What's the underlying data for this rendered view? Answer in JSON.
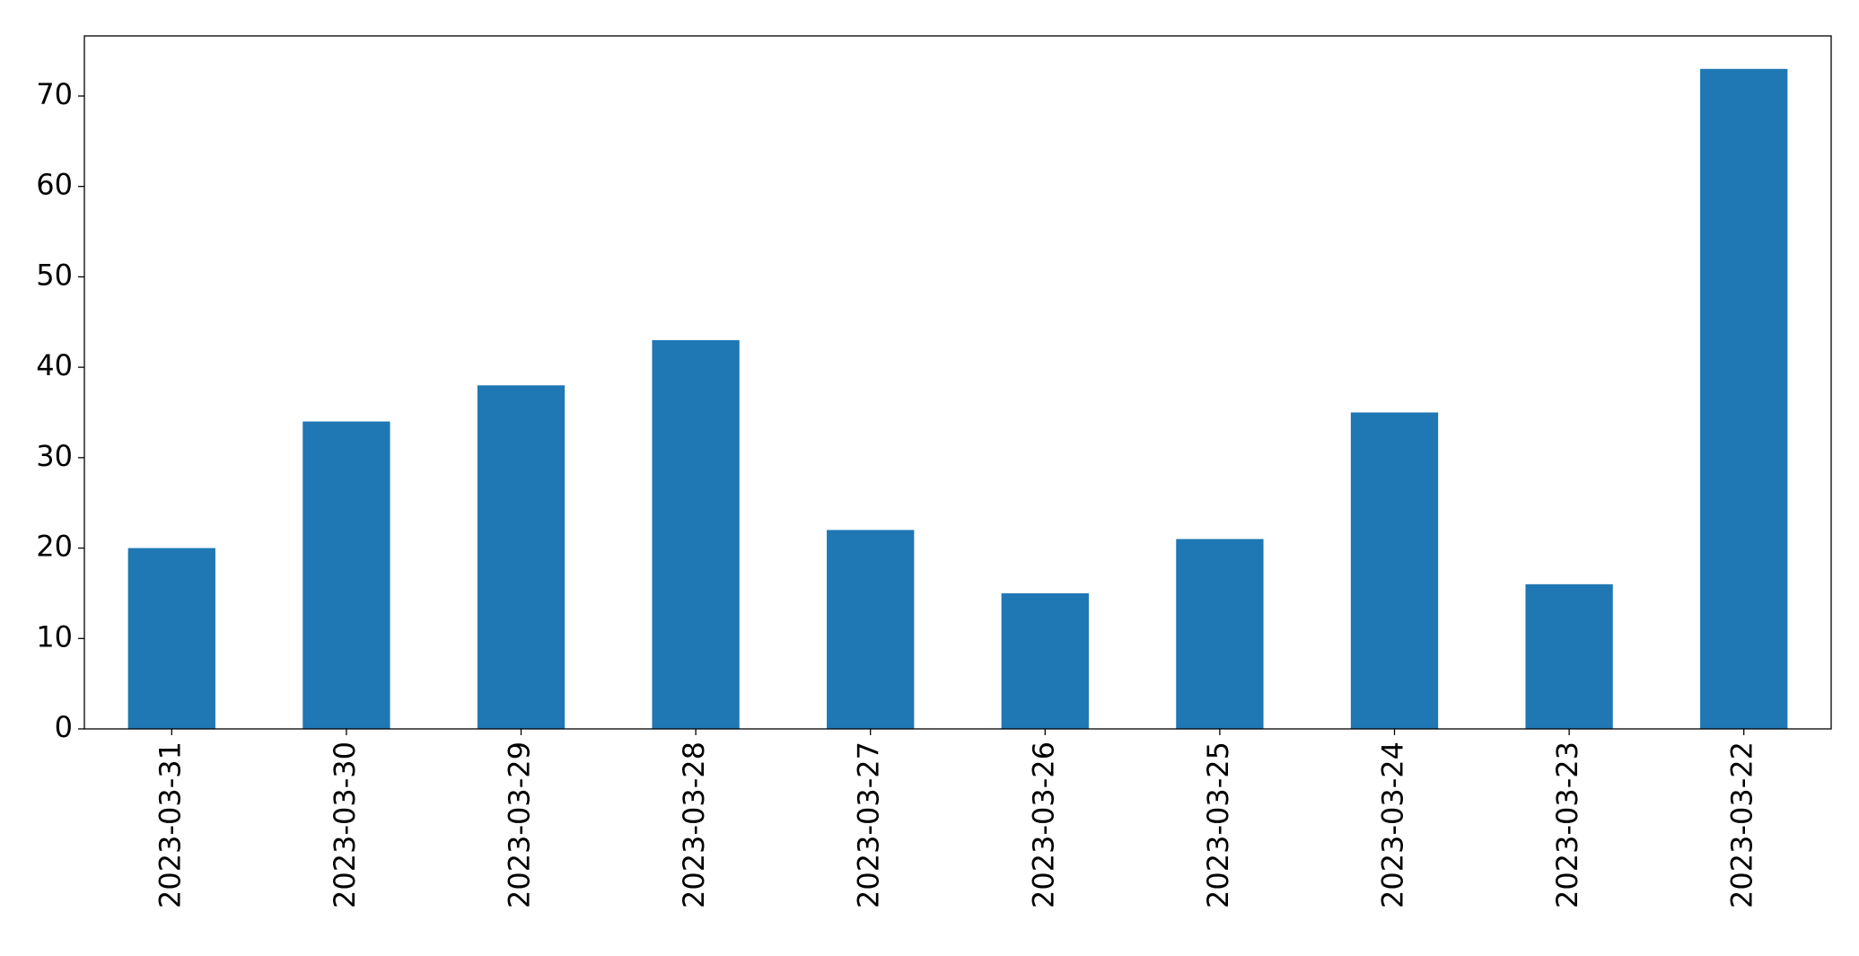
{
  "chart_data": {
    "type": "bar",
    "categories": [
      "2023-03-31",
      "2023-03-30",
      "2023-03-29",
      "2023-03-28",
      "2023-03-27",
      "2023-03-26",
      "2023-03-25",
      "2023-03-24",
      "2023-03-23",
      "2023-03-22"
    ],
    "values": [
      20,
      34,
      38,
      43,
      22,
      15,
      21,
      35,
      16,
      73
    ],
    "color": "#1f77b4",
    "ylim": [
      0,
      76.65
    ],
    "yticks": [
      0,
      10,
      20,
      30,
      40,
      50,
      60,
      70
    ],
    "grid": false
  }
}
